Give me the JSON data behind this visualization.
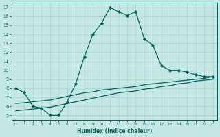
{
  "xlabel": "Humidex (Indice chaleur)",
  "xlim": [
    -0.5,
    23.5
  ],
  "ylim": [
    4.5,
    17.5
  ],
  "yticks": [
    5,
    6,
    7,
    8,
    9,
    10,
    11,
    12,
    13,
    14,
    15,
    16,
    17
  ],
  "xticks": [
    0,
    1,
    2,
    3,
    4,
    5,
    6,
    7,
    8,
    9,
    10,
    11,
    12,
    13,
    14,
    15,
    16,
    17,
    18,
    19,
    20,
    21,
    22,
    23
  ],
  "bg_color": "#c5e8e5",
  "grid_color": "#a8d0cc",
  "line_color": "#006060",
  "main_x": [
    0,
    1,
    2,
    3,
    4,
    5,
    6,
    7,
    8,
    9,
    10,
    11,
    12,
    13,
    14,
    15,
    16,
    17,
    18,
    19,
    20,
    21,
    22,
    23
  ],
  "main_y": [
    8.0,
    7.5,
    6.0,
    5.8,
    5.0,
    5.0,
    6.5,
    8.5,
    11.5,
    14.0,
    15.2,
    17.0,
    16.5,
    16.1,
    16.5,
    13.5,
    12.8,
    10.5,
    10.0,
    10.0,
    9.8,
    9.5,
    9.3,
    9.3
  ],
  "flat1_x": [
    0,
    1,
    2,
    3,
    4,
    5,
    6,
    7,
    8,
    9,
    10,
    11,
    12,
    13,
    14,
    15,
    16,
    17,
    18,
    19,
    20,
    21,
    22,
    23
  ],
  "flat1_y": [
    5.5,
    5.6,
    5.7,
    5.8,
    5.9,
    6.1,
    6.3,
    6.5,
    6.7,
    6.9,
    7.1,
    7.3,
    7.5,
    7.6,
    7.7,
    7.9,
    8.0,
    8.2,
    8.3,
    8.5,
    8.6,
    8.8,
    8.9,
    9.0
  ],
  "flat2_x": [
    0,
    1,
    2,
    3,
    4,
    5,
    6,
    7,
    8,
    9,
    10,
    11,
    12,
    13,
    14,
    15,
    16,
    17,
    18,
    19,
    20,
    21,
    22,
    23
  ],
  "flat2_y": [
    6.3,
    6.4,
    6.5,
    6.6,
    6.7,
    6.9,
    7.1,
    7.3,
    7.5,
    7.6,
    7.8,
    7.9,
    8.0,
    8.1,
    8.2,
    8.4,
    8.5,
    8.6,
    8.7,
    8.8,
    8.9,
    9.0,
    9.1,
    9.3
  ]
}
